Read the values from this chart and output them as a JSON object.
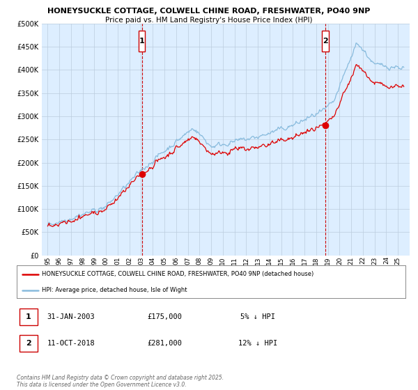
{
  "title1": "HONEYSUCKLE COTTAGE, COLWELL CHINE ROAD, FRESHWATER, PO40 9NP",
  "title2": "Price paid vs. HM Land Registry's House Price Index (HPI)",
  "legend_line1": "HONEYSUCKLE COTTAGE, COLWELL CHINE ROAD, FRESHWATER, PO40 9NP (detached house)",
  "legend_line2": "HPI: Average price, detached house, Isle of Wight",
  "annotation1_date": "31-JAN-2003",
  "annotation1_price": "£175,000",
  "annotation1_note": "5% ↓ HPI",
  "annotation2_date": "11-OCT-2018",
  "annotation2_price": "£281,000",
  "annotation2_note": "12% ↓ HPI",
  "footer": "Contains HM Land Registry data © Crown copyright and database right 2025.\nThis data is licensed under the Open Government Licence v3.0.",
  "house_color": "#dd0000",
  "hpi_color": "#88bbdd",
  "background_color": "#ffffff",
  "plot_bg_color": "#ddeeff",
  "grid_color": "#bbccdd",
  "ylim": [
    0,
    500000
  ],
  "yticks": [
    0,
    50000,
    100000,
    150000,
    200000,
    250000,
    300000,
    350000,
    400000,
    450000,
    500000
  ],
  "purchase1_x": 2003.08,
  "purchase1_y": 175000,
  "purchase2_x": 2018.78,
  "purchase2_y": 281000,
  "xmin": 1994.5,
  "xmax": 2026.0
}
